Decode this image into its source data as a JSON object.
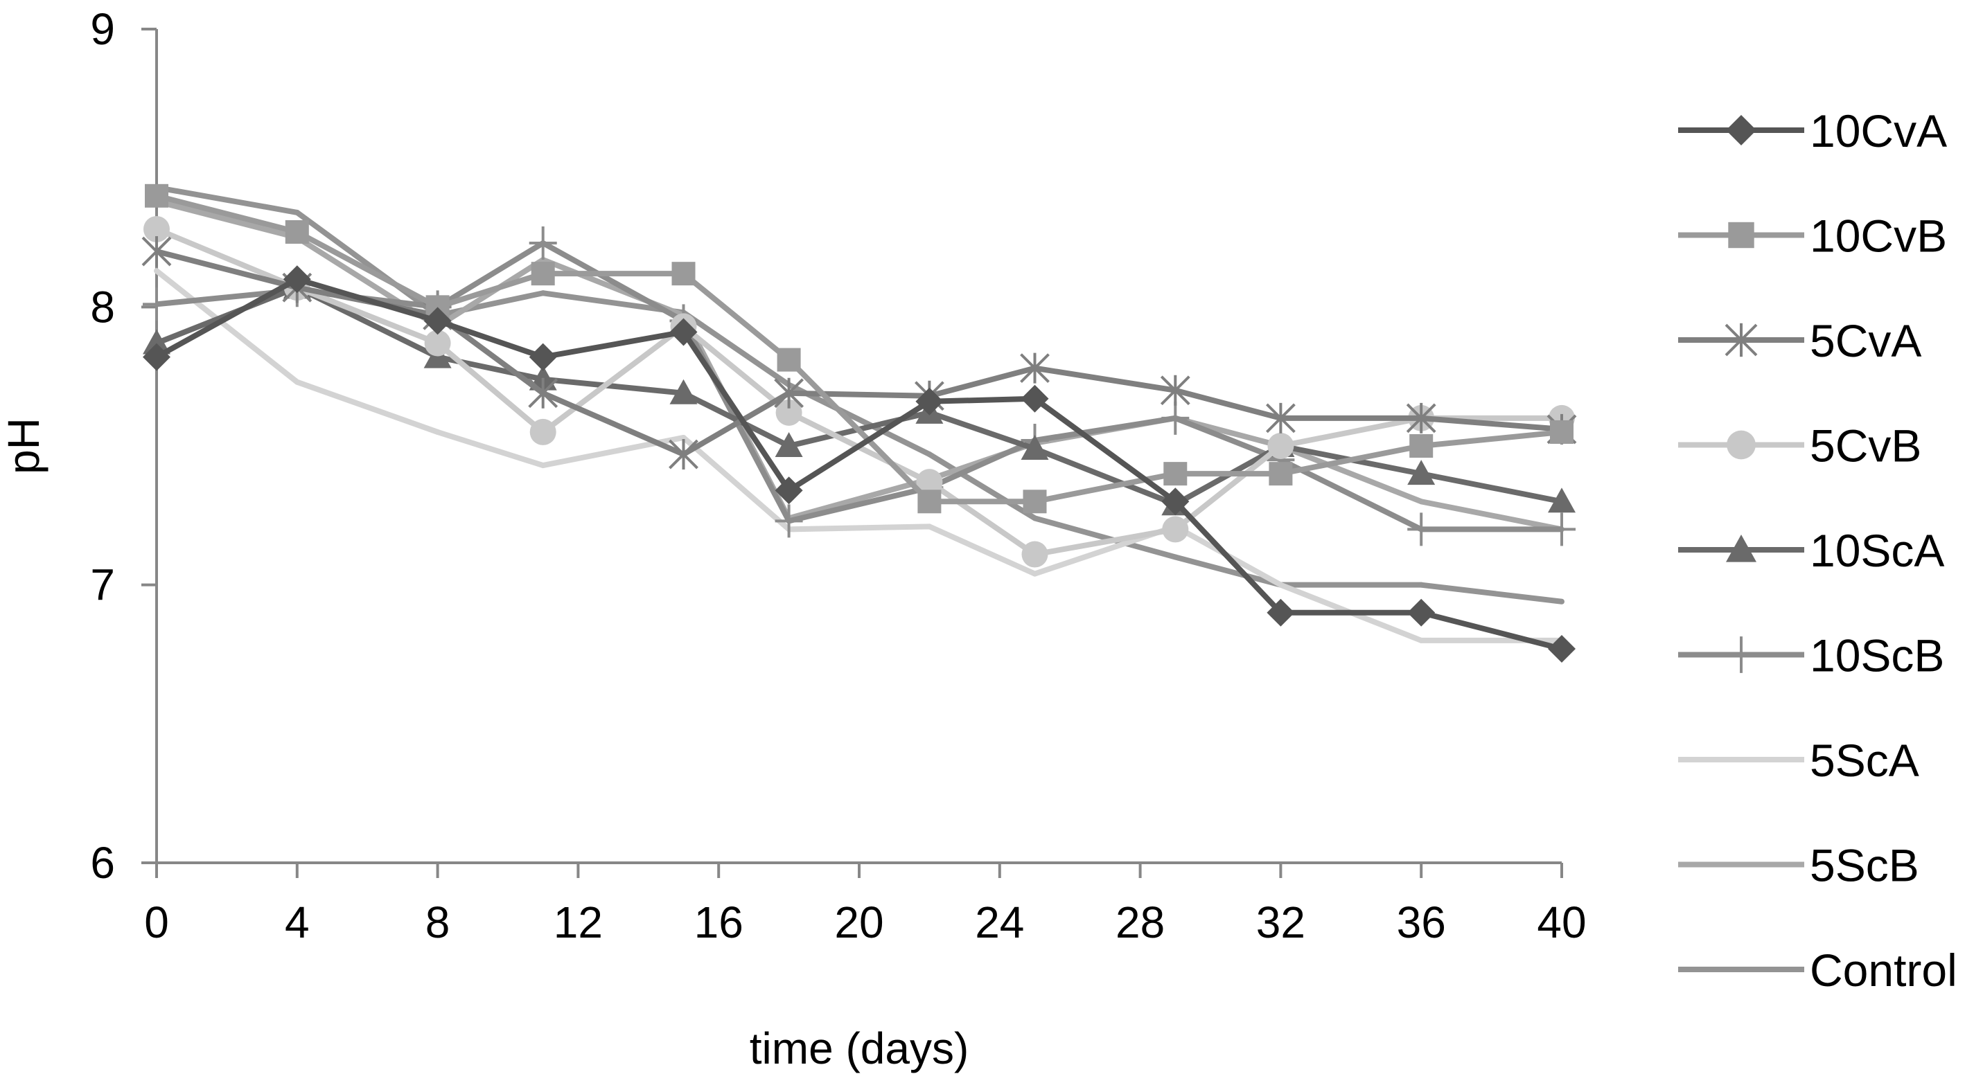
{
  "chart_data": {
    "type": "line",
    "title": "",
    "xlabel": "time (days)",
    "ylabel": "pH",
    "xlim": [
      0,
      40
    ],
    "ylim": [
      6,
      9
    ],
    "xticks": [
      "0",
      "4",
      "8",
      "12",
      "16",
      "20",
      "24",
      "28",
      "32",
      "36",
      "40"
    ],
    "yticks": [
      "6",
      "7",
      "8",
      "9"
    ],
    "grid": false,
    "legend_position": "right",
    "x": [
      0,
      4,
      8,
      11,
      15,
      18,
      22,
      25,
      29,
      32,
      36,
      40
    ],
    "series": [
      {
        "name": "10CvA",
        "marker": "diamond",
        "color": "#555555",
        "values": [
          7.82,
          8.1,
          7.95,
          7.82,
          7.91,
          7.34,
          7.66,
          7.67,
          7.3,
          6.9,
          6.9,
          6.77
        ]
      },
      {
        "name": "10CvB",
        "marker": "square",
        "color": "#9a9a9a",
        "values": [
          8.4,
          8.27,
          8.0,
          8.12,
          8.12,
          7.81,
          7.3,
          7.3,
          7.4,
          7.4,
          7.5,
          7.55
        ]
      },
      {
        "name": "5CvA",
        "marker": "asterisk",
        "color": "#7f7f7f",
        "values": [
          8.2,
          8.07,
          7.97,
          7.69,
          7.47,
          7.69,
          7.68,
          7.78,
          7.7,
          7.6,
          7.6,
          7.56
        ]
      },
      {
        "name": "5CvB",
        "marker": "circle",
        "color": "#c8c8c8",
        "values": [
          8.28,
          8.07,
          7.87,
          7.55,
          7.93,
          7.62,
          7.37,
          7.11,
          7.2,
          7.5,
          7.6,
          7.6
        ]
      },
      {
        "name": "10ScA",
        "marker": "triangle",
        "color": "#6a6a6a",
        "values": [
          7.87,
          8.07,
          7.82,
          7.74,
          7.69,
          7.5,
          7.62,
          7.49,
          7.29,
          7.5,
          7.4,
          7.3
        ]
      },
      {
        "name": "10ScB",
        "marker": "plus",
        "color": "#8c8c8c",
        "values": [
          8.01,
          8.06,
          8.0,
          8.23,
          7.95,
          7.23,
          7.35,
          7.52,
          7.6,
          7.45,
          7.2,
          7.2
        ]
      },
      {
        "name": "5ScA",
        "marker": "none",
        "color": "#d3d3d3",
        "values": [
          8.13,
          7.73,
          7.55,
          7.43,
          7.53,
          7.2,
          7.21,
          7.04,
          7.21,
          7.0,
          6.8,
          6.8
        ]
      },
      {
        "name": "5ScB",
        "marker": "none",
        "color": "#a8a8a8",
        "values": [
          8.38,
          8.25,
          7.93,
          8.17,
          7.97,
          7.24,
          7.38,
          7.51,
          7.6,
          7.5,
          7.3,
          7.2
        ]
      },
      {
        "name": "Control",
        "marker": "none",
        "color": "#939393",
        "values": [
          8.43,
          8.34,
          7.97,
          8.05,
          7.98,
          7.72,
          7.47,
          7.24,
          7.1,
          7.0,
          7.0,
          6.94
        ]
      }
    ]
  }
}
